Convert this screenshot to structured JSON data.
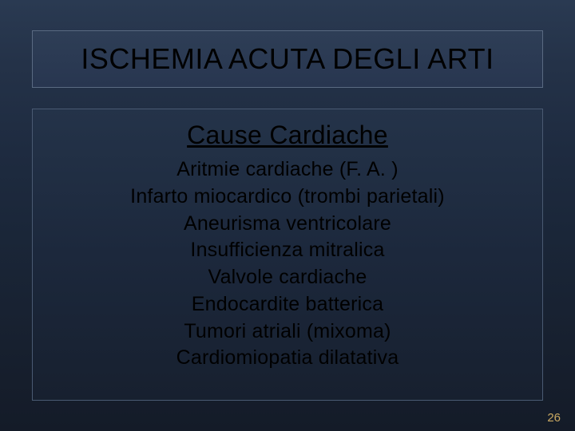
{
  "slide": {
    "title": "ISCHEMIA ACUTA DEGLI ARTI",
    "subtitle": "Cause Cardiache",
    "items": [
      "Aritmie cardiache (F. A. )",
      "Infarto miocardico (trombi parietali)",
      "Aneurisma ventricolare",
      "Insufficienza mitralica",
      "Valvole cardiache",
      "Endocardite batterica",
      "Tumori atriali (mixoma)",
      "Cardiomiopatia dilatativa"
    ],
    "page_number": "26"
  },
  "style": {
    "background_gradient_top": "#2a3a52",
    "background_gradient_bottom": "#141b28",
    "title_box_border": "#5a6a82",
    "content_box_border": "#4a5a72",
    "text_color": "#000000",
    "page_number_color": "#c9a862",
    "title_fontsize": 36,
    "subtitle_fontsize": 32,
    "item_fontsize": 25,
    "page_number_fontsize": 15
  }
}
